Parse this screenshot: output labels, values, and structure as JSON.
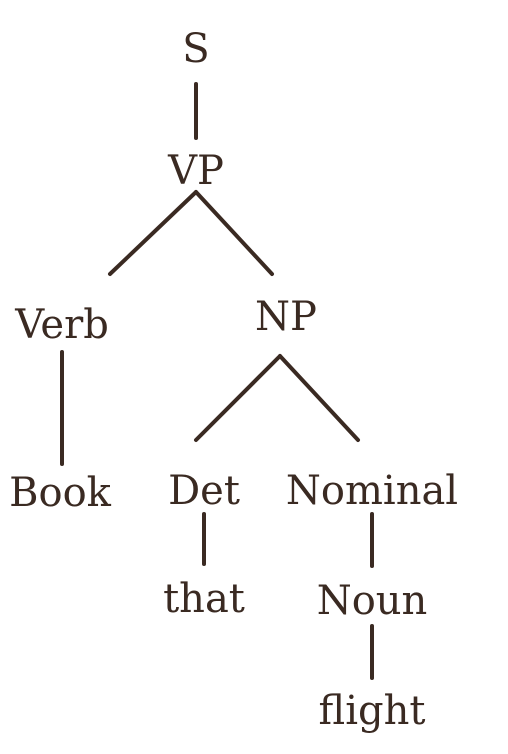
{
  "tree": {
    "nodes": [
      {
        "id": "s",
        "label": "S"
      },
      {
        "id": "vp",
        "label": "VP"
      },
      {
        "id": "verb",
        "label": "Verb"
      },
      {
        "id": "np",
        "label": "NP"
      },
      {
        "id": "book",
        "label": "Book"
      },
      {
        "id": "det",
        "label": "Det"
      },
      {
        "id": "nominal",
        "label": "Nominal"
      },
      {
        "id": "that",
        "label": "that"
      },
      {
        "id": "noun",
        "label": "Noun"
      },
      {
        "id": "flight",
        "label": "flight"
      }
    ],
    "edges": [
      {
        "from": "S",
        "to": "VP"
      },
      {
        "from": "VP",
        "to": "Verb"
      },
      {
        "from": "VP",
        "to": "NP"
      },
      {
        "from": "Verb",
        "to": "Book"
      },
      {
        "from": "NP",
        "to": "Det"
      },
      {
        "from": "NP",
        "to": "Nominal"
      },
      {
        "from": "Det",
        "to": "that"
      },
      {
        "from": "Nominal",
        "to": "Noun"
      },
      {
        "from": "Noun",
        "to": "flight"
      }
    ]
  },
  "colors": {
    "ink": "#3a2a22",
    "background": "#ffffff"
  }
}
